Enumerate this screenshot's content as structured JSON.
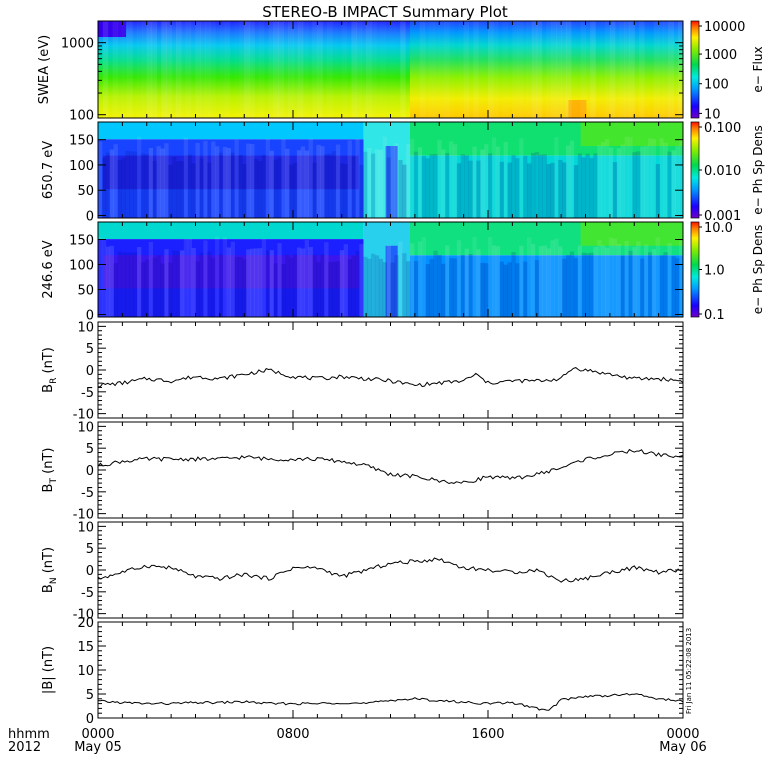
{
  "title": "STEREO-B IMPACT Summary Plot",
  "time_axis": {
    "row1_label": "hhmm",
    "row2_label": "2012",
    "ticks": [
      {
        "hour": 0,
        "label": "0000",
        "date": "May 05"
      },
      {
        "hour": 8,
        "label": "0800",
        "date": ""
      },
      {
        "hour": 16,
        "label": "1600",
        "date": ""
      },
      {
        "hour": 24,
        "label": "0000",
        "date": "May 06"
      }
    ],
    "range_hours": [
      0,
      24
    ]
  },
  "stamp": "Fri Jan 11 05:22:08 2013",
  "spectrograms": [
    {
      "id": "swea",
      "ylabel": "SWEA (eV)",
      "yscale": "log",
      "ylim": [
        90,
        2000
      ],
      "yticks": [
        {
          "v": 100,
          "label": "100"
        },
        {
          "v": 1000,
          "label": "1000"
        }
      ],
      "colorbar": {
        "label": "e− Flux",
        "scale": "log",
        "range": [
          7,
          13000
        ],
        "ticks": [
          {
            "v": 10,
            "label": "10"
          },
          {
            "v": 100,
            "label": "100"
          },
          {
            "v": 1000,
            "label": "1000"
          },
          {
            "v": 10000,
            "label": "10000"
          }
        ]
      }
    },
    {
      "id": "pad650",
      "ylabel": "650.7 eV",
      "yscale": "linear",
      "ylim": [
        -5,
        185
      ],
      "yticks": [
        {
          "v": 0,
          "label": "0"
        },
        {
          "v": 50,
          "label": "50"
        },
        {
          "v": 100,
          "label": "100"
        },
        {
          "v": 150,
          "label": "150"
        }
      ],
      "colorbar": {
        "label": "e− Ph Sp Dens",
        "scale": "log",
        "range": [
          0.001,
          0.1
        ],
        "ticks": [
          {
            "v": 0.001,
            "label": "0.001"
          },
          {
            "v": 0.01,
            "label": "0.010"
          },
          {
            "v": 0.1,
            "label": "0.100"
          }
        ]
      }
    },
    {
      "id": "pad246",
      "ylabel": "246.6 eV",
      "yscale": "linear",
      "ylim": [
        -5,
        185
      ],
      "yticks": [
        {
          "v": 0,
          "label": "0"
        },
        {
          "v": 50,
          "label": "50"
        },
        {
          "v": 100,
          "label": "100"
        },
        {
          "v": 150,
          "label": "150"
        }
      ],
      "colorbar": {
        "label": "e− Ph Sp Dens",
        "scale": "log",
        "range": [
          0.1,
          10
        ],
        "ticks": [
          {
            "v": 0.1,
            "label": "0.1"
          },
          {
            "v": 1,
            "label": "1.0"
          },
          {
            "v": 10,
            "label": "10.0"
          }
        ]
      }
    }
  ],
  "chart_data": [
    {
      "type": "line",
      "id": "br",
      "ylabel_main": "B",
      "ylabel_sub": "R",
      "ylabel_unit": " (nT)",
      "ylim": [
        -11,
        11
      ],
      "yticks": [
        -10,
        -5,
        0,
        5,
        10
      ],
      "x_hours": [
        0,
        1,
        2,
        3,
        4,
        5,
        6,
        7,
        8,
        9,
        10,
        11,
        12,
        13,
        14,
        15,
        15.5,
        16,
        17,
        18,
        19,
        19.5,
        20,
        21,
        22,
        23,
        24
      ],
      "values": [
        -3.5,
        -3,
        -2,
        -2.5,
        -1.5,
        -2,
        -1,
        0,
        -1.5,
        -2,
        -1.5,
        -2,
        -2.5,
        -3.5,
        -3,
        -2.5,
        -1,
        -3,
        -2.5,
        -2.5,
        -2,
        0.5,
        0,
        -1,
        -2,
        -2,
        -2.5
      ]
    },
    {
      "type": "line",
      "id": "bt",
      "ylabel_main": "B",
      "ylabel_sub": "T",
      "ylabel_unit": " (nT)",
      "ylim": [
        -11,
        11
      ],
      "yticks": [
        -10,
        -5,
        0,
        5,
        10
      ],
      "x_hours": [
        0,
        1,
        2,
        3,
        4,
        5,
        6,
        7,
        8,
        9,
        10,
        11,
        12,
        13,
        14,
        15,
        16,
        17,
        18,
        19,
        20,
        21,
        22,
        23,
        24
      ],
      "values": [
        1,
        2,
        2.5,
        2.5,
        2.5,
        2.5,
        3,
        2.5,
        2.5,
        2.5,
        2,
        1,
        -1,
        -1.5,
        -2.5,
        -3,
        -1.5,
        -2,
        -1,
        0.5,
        2.5,
        3.5,
        4.5,
        3.5,
        3
      ]
    },
    {
      "type": "line",
      "id": "bn",
      "ylabel_main": "B",
      "ylabel_sub": "N",
      "ylabel_unit": " (nT)",
      "ylim": [
        -11,
        11
      ],
      "yticks": [
        -10,
        -5,
        0,
        5,
        10
      ],
      "x_hours": [
        0,
        1,
        2,
        3,
        4,
        5,
        6,
        7,
        8,
        9,
        10,
        11,
        12,
        13,
        14,
        15,
        16,
        17,
        18,
        19,
        20,
        21,
        22,
        23,
        24
      ],
      "values": [
        -2,
        -0.5,
        1,
        0.5,
        -1.5,
        -2,
        -1,
        -2,
        0.5,
        0.5,
        -1.5,
        0,
        1.5,
        2,
        2.5,
        0.5,
        0,
        -0.5,
        0,
        -2.5,
        -2,
        -0.5,
        0.5,
        -0.5,
        0
      ]
    },
    {
      "type": "line",
      "id": "bmag",
      "ylabel_main": "|B| (nT)",
      "ylabel_sub": "",
      "ylabel_unit": "",
      "ylim": [
        0,
        20
      ],
      "yticks": [
        0,
        5,
        10,
        15,
        20
      ],
      "x_hours": [
        0,
        1,
        2,
        3,
        4,
        5,
        6,
        7,
        8,
        9,
        10,
        11,
        12,
        13,
        14,
        15,
        16,
        17,
        18,
        18.5,
        19,
        20,
        21,
        22,
        23,
        24
      ],
      "values": [
        3.5,
        3.2,
        3,
        3,
        3.2,
        3.2,
        3.4,
        3,
        3,
        3,
        3.2,
        3,
        3.7,
        4,
        3.6,
        3.3,
        3,
        3.2,
        2,
        1.5,
        3.8,
        4.5,
        4.7,
        5,
        4,
        3.5
      ]
    }
  ]
}
